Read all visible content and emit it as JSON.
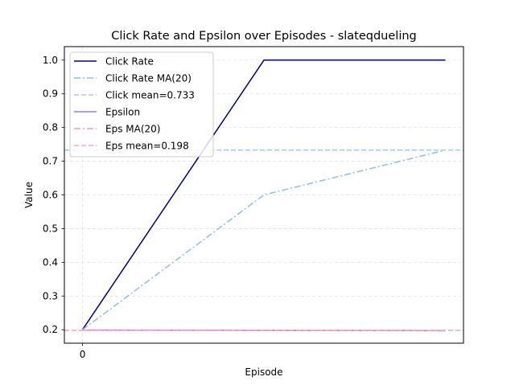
{
  "chart_data": {
    "type": "line",
    "title": "Click Rate and Epsilon over Episodes - slateqdueling",
    "xlabel": "Episode",
    "ylabel": "Value",
    "xlim": [
      -0.1,
      2.1
    ],
    "ylim": [
      0.16,
      1.04
    ],
    "x_ticks": [
      0
    ],
    "x_tick_labels": [
      "0"
    ],
    "y_ticks": [
      0.2,
      0.3,
      0.4,
      0.5,
      0.6,
      0.7,
      0.8,
      0.9,
      1.0
    ],
    "y_tick_labels": [
      "0.2",
      "0.3",
      "0.4",
      "0.5",
      "0.6",
      "0.7",
      "0.8",
      "0.9",
      "1.0"
    ],
    "grid": true,
    "legend_position": "upper-left",
    "series": [
      {
        "name": "Click Rate",
        "x": [
          0,
          1,
          2
        ],
        "values": [
          0.2,
          1.0,
          1.0
        ],
        "color": "#00008b",
        "style": "solid"
      },
      {
        "name": "Click Rate MA(20)",
        "x": [
          0,
          1,
          2
        ],
        "values": [
          0.2,
          0.6,
          0.733
        ],
        "color": "#8fbce8",
        "style": "dashdot"
      },
      {
        "name": "Click mean=0.733",
        "hline": 0.733,
        "color": "#a9c8ee",
        "style": "dashed"
      },
      {
        "name": "Epsilon",
        "x": [
          0,
          1,
          2
        ],
        "values": [
          0.199,
          0.198,
          0.197
        ],
        "color": "#9b7bea",
        "style": "solid"
      },
      {
        "name": "Eps MA(20)",
        "x": [
          0,
          1,
          2
        ],
        "values": [
          0.199,
          0.1985,
          0.198
        ],
        "color": "#f29bb5",
        "style": "dashdot"
      },
      {
        "name": "Eps mean=0.198",
        "hline": 0.198,
        "color": "#f5a6cc",
        "style": "dashed"
      }
    ]
  }
}
